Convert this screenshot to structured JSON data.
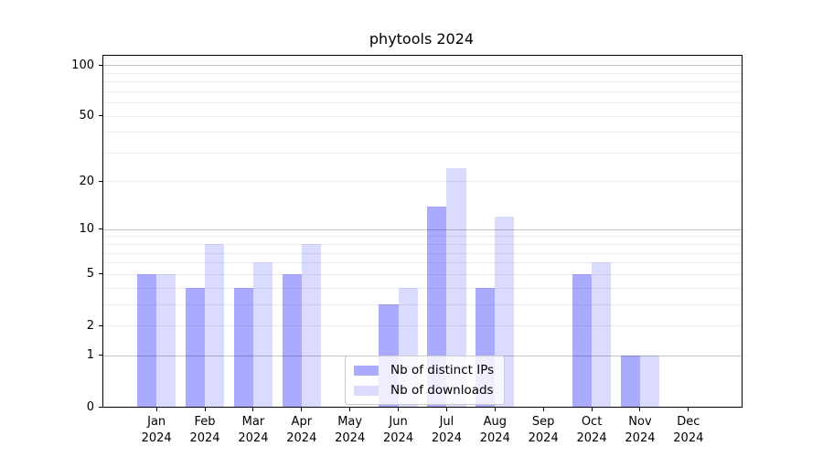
{
  "chart_data": {
    "type": "bar",
    "title": "phytools 2024",
    "categories": [
      "Jan",
      "Feb",
      "Mar",
      "Apr",
      "May",
      "Jun",
      "Jul",
      "Aug",
      "Sep",
      "Oct",
      "Nov",
      "Dec"
    ],
    "category_year": "2024",
    "series": [
      {
        "name": "Nb of distinct IPs",
        "color": "#0000FF55",
        "values": [
          5,
          4,
          4,
          5,
          0,
          3,
          14,
          4,
          0,
          5,
          1,
          0
        ]
      },
      {
        "name": "Nb of downloads",
        "color": "#0000FF24",
        "values": [
          5,
          8,
          6,
          8,
          0,
          4,
          24,
          12,
          0,
          6,
          1,
          0
        ]
      }
    ],
    "yscale": "log1p",
    "ylim": [
      0,
      113.5
    ],
    "yticks": [
      0,
      1,
      2,
      5,
      10,
      20,
      50,
      100
    ],
    "major_gridlines": [
      1,
      10,
      100
    ],
    "minor_gridlines": [
      2,
      3,
      4,
      5,
      6,
      7,
      8,
      9,
      20,
      30,
      40,
      50,
      60,
      70,
      80,
      90
    ],
    "grid_color_major": "#c4c4c4",
    "grid_color_minor": "#ececec",
    "xlabel": "",
    "ylabel": "",
    "legend_position": "lower-center"
  }
}
